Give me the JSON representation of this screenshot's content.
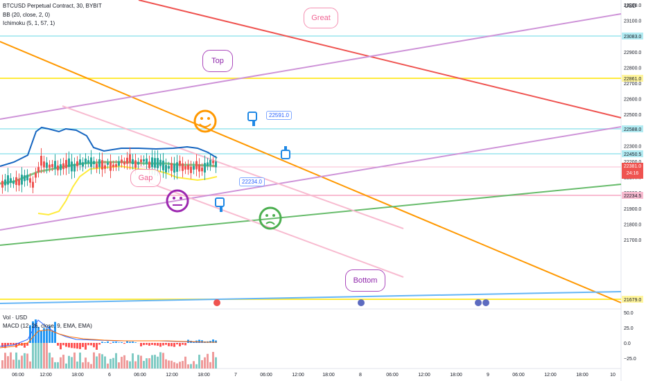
{
  "header": {
    "symbol_line": "BTCUSD Perpetual Contract, 30, BYBIT",
    "bb_line": "BB (20, close, 2, 0)",
    "ichimoku_line": "Ichimoku (5, 1, 57, 1)",
    "currency": "USD"
  },
  "lower_pane": {
    "vol_line": "Vol · USD",
    "macd_line": "MACD (12, 26, close, 9, EMA, EMA)"
  },
  "price_axis": {
    "ticks": [
      "23200.0",
      "23100.0",
      "23000.0",
      "22900.0",
      "22800.0",
      "22700.0",
      "22600.0",
      "22500.0",
      "22400.0",
      "22300.0",
      "22200.0",
      "22100.0",
      "22000.0",
      "21900.0",
      "21800.0",
      "21700.0"
    ],
    "level_labels": [
      {
        "text": "23083.0",
        "color": "#b2ebf2"
      },
      {
        "text": "22861.0",
        "color": "#fff59d"
      },
      {
        "text": "22588.0",
        "color": "#b2ebf2"
      },
      {
        "text": "22450.5",
        "color": "#b2ebf2"
      },
      {
        "text": "22234.5",
        "color": "#f8bbd0"
      },
      {
        "text": "21679.0",
        "color": "#fff59d"
      }
    ],
    "current_price": "22381.0",
    "countdown": "24:16"
  },
  "osc_axis": {
    "ticks": [
      "50.0",
      "25.0",
      "0.0",
      "−25.0"
    ]
  },
  "time_axis": {
    "ticks": [
      "06:00",
      "12:00",
      "18:00",
      "6",
      "06:00",
      "12:00",
      "18:00",
      "7",
      "06:00",
      "12:00",
      "18:00",
      "8",
      "06:00",
      "12:00",
      "18:00",
      "9",
      "06:00",
      "12:00",
      "18:00",
      "10"
    ]
  },
  "annotations": {
    "great": "Great",
    "top": "Top",
    "gap": "Gap",
    "bottom": "Bottom",
    "callout_1": "22591.0",
    "callout_2": "22234.0"
  },
  "colors": {
    "red_line": "#ef5350",
    "orange_line": "#ff9800",
    "purple_line": "#ce93d8",
    "green_line": "#66bb6a",
    "pink_line": "#f8bbd0",
    "blue_line": "#64b5f6",
    "yellow_line": "#ffeb3b",
    "cyan_line": "#b2ebf2",
    "candle_up": "#26a69a",
    "candle_down": "#ef5350",
    "bb_upper": "#1565c0",
    "bb_lower": "#ffeb3b"
  }
}
